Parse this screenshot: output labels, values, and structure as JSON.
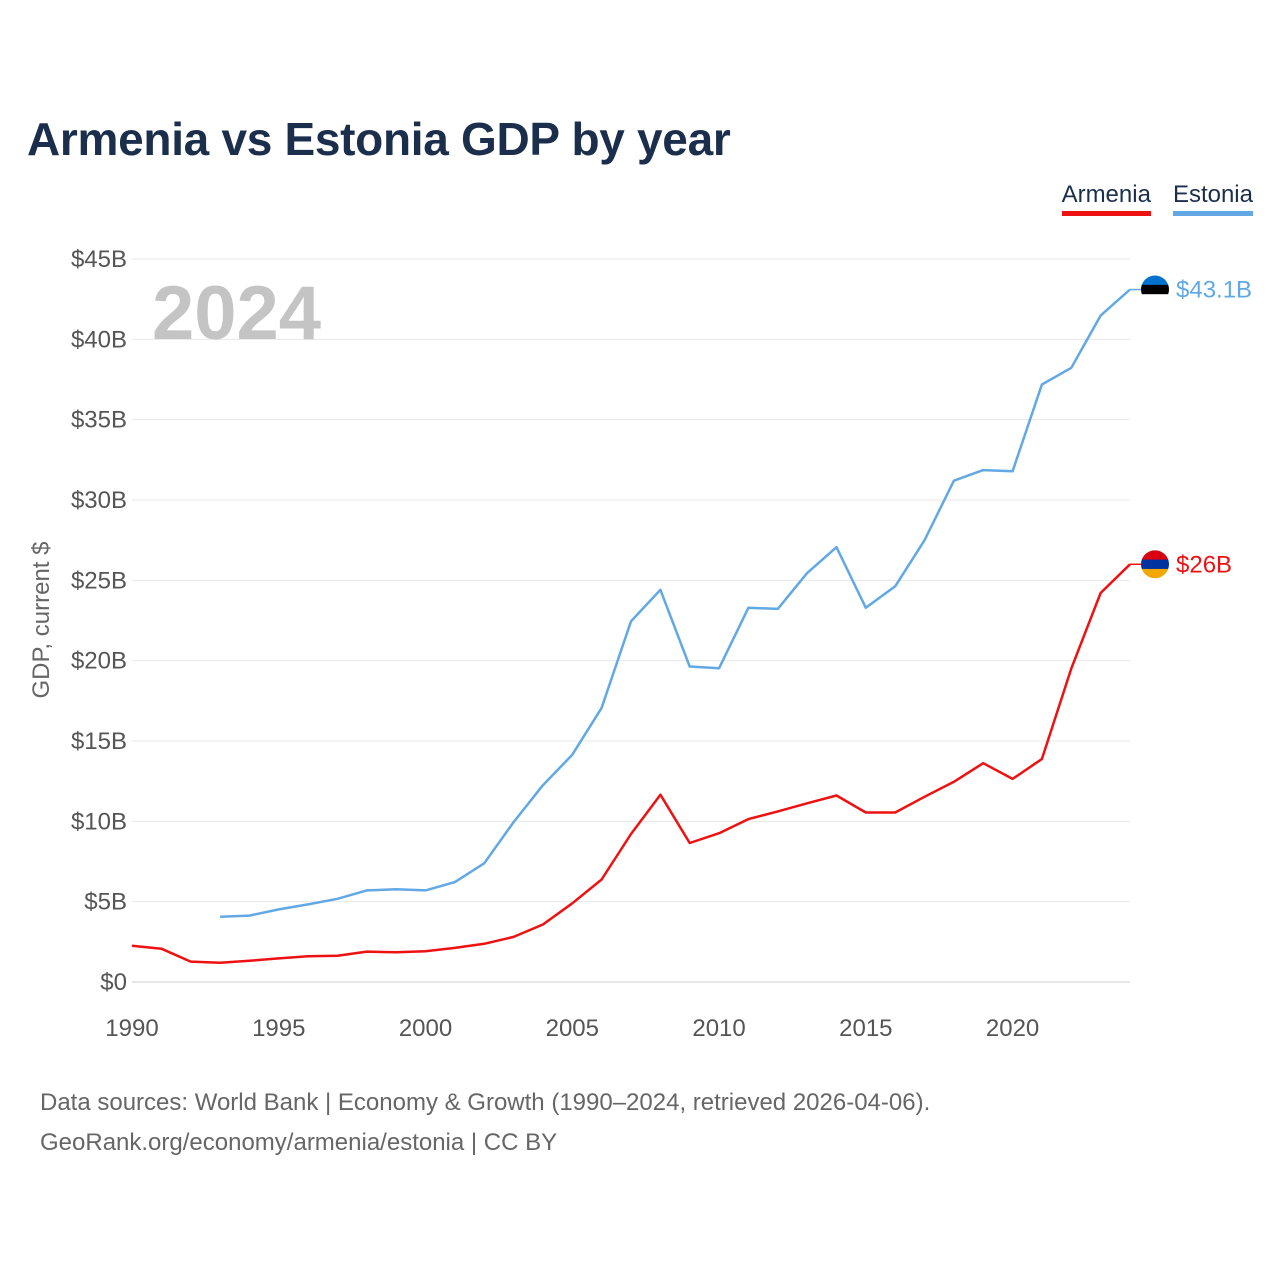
{
  "chart_data": {
    "type": "line",
    "title": "Armenia vs Estonia GDP by year",
    "ylabel": "GDP, current $",
    "xlabel": "",
    "xlim": [
      1990,
      2024
    ],
    "ylim": [
      0,
      45
    ],
    "x_ticks": [
      1990,
      1995,
      2000,
      2005,
      2010,
      2015,
      2020
    ],
    "x_tick_labels": [
      "1990",
      "1995",
      "2000",
      "2005",
      "2010",
      "2015",
      "2020"
    ],
    "y_ticks": [
      0,
      5,
      10,
      15,
      20,
      25,
      30,
      35,
      40,
      45
    ],
    "y_tick_labels": [
      "$0",
      "$5B",
      "$10B",
      "$15B",
      "$20B",
      "$25B",
      "$30B",
      "$35B",
      "$40B",
      "$45B"
    ],
    "year_watermark": "2024",
    "legend": [
      "Armenia",
      "Estonia"
    ],
    "grid": true,
    "series": [
      {
        "name": "Armenia",
        "color": "#ee1111",
        "end_label": "$26B",
        "flag_colors": [
          "#d90012",
          "#0033a0",
          "#f2a800"
        ],
        "x": [
          1990,
          1991,
          1992,
          1993,
          1994,
          1995,
          1996,
          1997,
          1998,
          1999,
          2000,
          2001,
          2002,
          2003,
          2004,
          2005,
          2006,
          2007,
          2008,
          2009,
          2010,
          2011,
          2012,
          2013,
          2014,
          2015,
          2016,
          2017,
          2018,
          2019,
          2020,
          2021,
          2022,
          2023,
          2024
        ],
        "values": [
          2.26,
          2.07,
          1.27,
          1.2,
          1.32,
          1.47,
          1.6,
          1.64,
          1.89,
          1.85,
          1.91,
          2.12,
          2.38,
          2.81,
          3.58,
          4.9,
          6.38,
          9.21,
          11.66,
          8.65,
          9.26,
          10.14,
          10.62,
          11.12,
          11.61,
          10.55,
          10.55,
          11.53,
          12.46,
          13.62,
          12.64,
          13.88,
          19.51,
          24.21,
          26.0
        ]
      },
      {
        "name": "Estonia",
        "color": "#62a8e5",
        "end_label": "$43.1B",
        "flag_colors": [
          "#0072ce",
          "#000000",
          "#ffffff"
        ],
        "x": [
          1993,
          1994,
          1995,
          1996,
          1997,
          1998,
          1999,
          2000,
          2001,
          2002,
          2003,
          2004,
          2005,
          2006,
          2007,
          2008,
          2009,
          2010,
          2011,
          2012,
          2013,
          2014,
          2015,
          2016,
          2017,
          2018,
          2019,
          2020,
          2021,
          2022,
          2023,
          2024
        ],
        "values": [
          4.06,
          4.13,
          4.52,
          4.83,
          5.18,
          5.7,
          5.77,
          5.7,
          6.22,
          7.39,
          9.95,
          12.25,
          14.15,
          17.06,
          22.45,
          24.41,
          19.64,
          19.53,
          23.29,
          23.22,
          25.45,
          27.06,
          23.29,
          24.63,
          27.49,
          31.2,
          31.86,
          31.79,
          37.19,
          38.23,
          41.48,
          43.1
        ]
      }
    ]
  },
  "footer": {
    "line1": "Data sources: World Bank | Economy & Growth (1990–2024, retrieved 2026-04-06).",
    "line2": "GeoRank.org/economy/armenia/estonia | CC BY"
  }
}
